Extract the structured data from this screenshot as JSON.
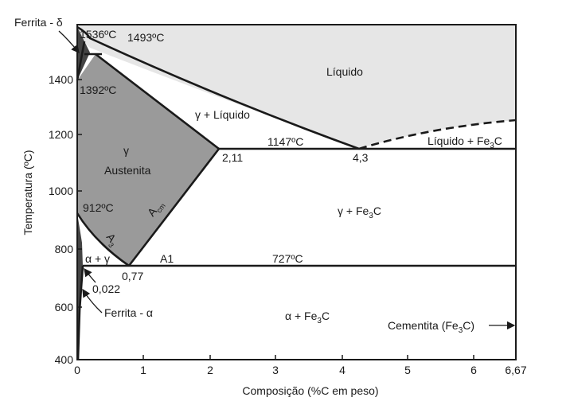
{
  "diagram": {
    "y_axis_title": "Temperatura (ºC)",
    "x_axis_title": "Composição (%C em peso)",
    "y_ticks": [
      "400",
      "600",
      "800",
      "1000",
      "1200",
      "1400"
    ],
    "x_ticks": [
      "0",
      "1",
      "2",
      "3",
      "4",
      "5",
      "6",
      "6,67"
    ],
    "regions": {
      "liquid": "Líquido",
      "gamma_liquid": "γ + Líquido",
      "gamma_symbol": "γ",
      "austenite": "Austenita",
      "gamma_fe3c": "γ + Fe",
      "alpha_fe3c": "α + Fe",
      "liquid_fe3c": "Líquido + Fe",
      "alpha_gamma": "α + γ"
    },
    "subscript_3": "3",
    "fe3c_suffix": "C",
    "points": {
      "t_1536": "1536ºC",
      "t_1493": "1493ºC",
      "t_1392": "1392ºC",
      "t_1147": "1147ºC",
      "t_912": "912ºC",
      "t_727": "727ºC",
      "c_211": "2,11",
      "c_43": "4,3",
      "c_077": "0,77",
      "c_0022": "0,022"
    },
    "lines": {
      "a1": "A1",
      "a3": "A",
      "a3_sub": "3",
      "acm": "A",
      "acm_sub": "cm"
    },
    "phases": {
      "ferrite_delta": "Ferrita - δ",
      "ferrite_alpha": "Ferrita - α",
      "cementite": "Cementita (Fe",
      "cementite_close": "C)"
    },
    "colors": {
      "austenite_fill": "#9a9a9a",
      "liquid_fill": "#e6e6e6",
      "ferrite_fill": "#444444",
      "line": "#1a1a1a"
    }
  }
}
